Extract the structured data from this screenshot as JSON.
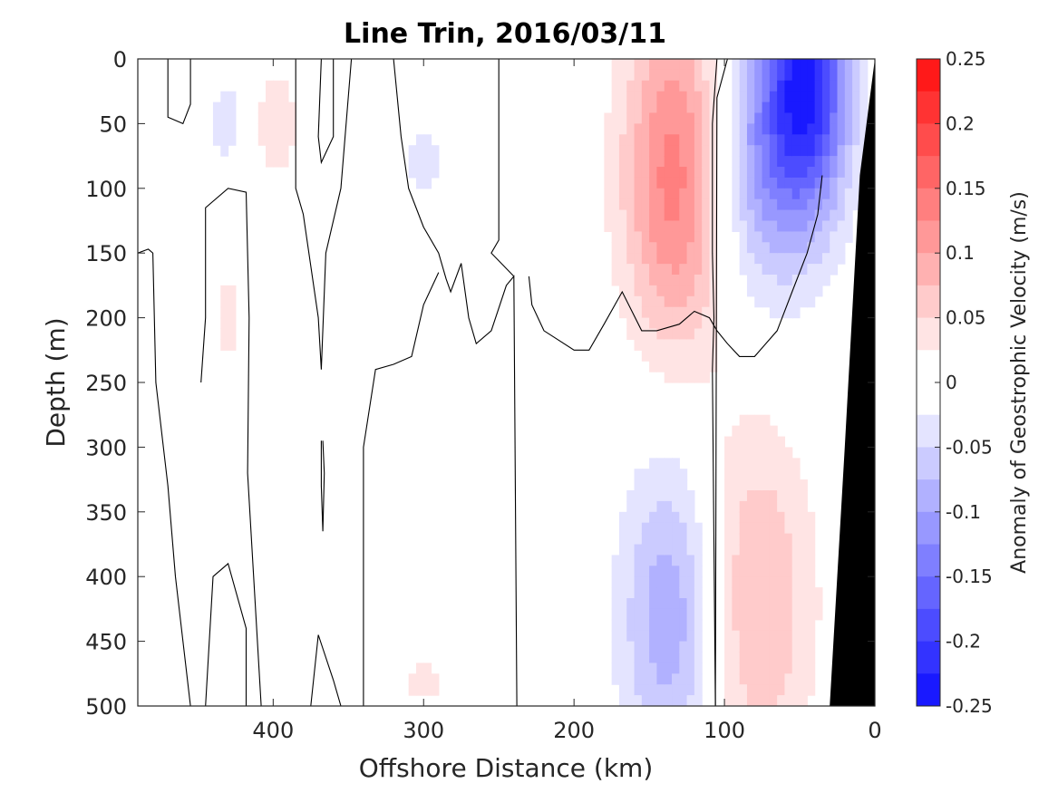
{
  "chart_data": {
    "type": "heatmap",
    "title": "Line Trin, 2016/03/11",
    "xlabel": "Offshore Distance (km)",
    "ylabel": "Depth (m)",
    "xlim": [
      490,
      0
    ],
    "ylim": [
      0,
      500
    ],
    "x_direction": "reversed",
    "y_direction": "reversed",
    "xticks": [
      400,
      300,
      200,
      100,
      0
    ],
    "yticks": [
      0,
      50,
      100,
      150,
      200,
      250,
      300,
      350,
      400,
      450,
      500
    ],
    "colorbar": {
      "label": "Anomaly of Geostrophic Velocity (m/s)",
      "range": [
        -0.25,
        0.25
      ],
      "step": 0.025,
      "ticks": [
        0.25,
        0.2,
        0.15,
        0.1,
        0.05,
        0,
        -0.05,
        -0.1,
        -0.15,
        -0.2,
        -0.25
      ],
      "tick_labels": [
        "0.25",
        "0.2",
        "0.15",
        "0.1",
        "0.05",
        "0",
        "-0.05",
        "-0.1",
        "-0.15",
        "-0.2",
        "-0.25"
      ],
      "colormap": "blue-white-red"
    },
    "bathymetry_color": "#000000",
    "zero_contour_color": "#000000",
    "features": [
      {
        "type": "positive",
        "x_center": 130,
        "depth_center": 90,
        "peak": 0.15
      },
      {
        "type": "negative",
        "x_center": 45,
        "depth_center": 20,
        "peak": -0.21
      },
      {
        "type": "negative",
        "x_center": 80,
        "depth_center": 80,
        "peak": -0.1
      },
      {
        "type": "negative",
        "x_center": 135,
        "depth_center": 430,
        "peak": -0.1
      },
      {
        "type": "positive",
        "x_center": 80,
        "depth_center": 420,
        "peak": 0.08
      },
      {
        "type": "positive",
        "x_center": 400,
        "depth_center": 50,
        "peak": 0.04
      },
      {
        "type": "positive",
        "x_center": 430,
        "depth_center": 200,
        "peak": 0.03
      },
      {
        "type": "negative",
        "x_center": 430,
        "depth_center": 50,
        "peak": -0.04
      },
      {
        "type": "negative",
        "x_center": 300,
        "depth_center": 80,
        "peak": -0.03
      },
      {
        "type": "positive",
        "x_center": 300,
        "depth_center": 480,
        "peak": 0.03
      }
    ]
  }
}
